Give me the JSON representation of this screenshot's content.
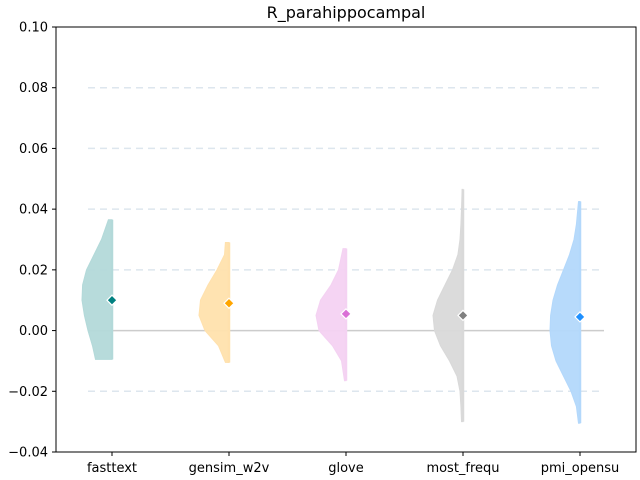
{
  "chart_data": {
    "type": "violin",
    "title": "R_parahippocampal",
    "xlabel": "",
    "ylabel": "",
    "ylim": [
      -0.04,
      0.1
    ],
    "yticks": [
      -0.04,
      -0.02,
      0.0,
      0.02,
      0.04,
      0.06,
      0.08,
      0.1
    ],
    "ytick_labels": [
      "−0.04",
      "−0.02",
      "0.00",
      "0.02",
      "0.04",
      "0.06",
      "0.08",
      "0.10"
    ],
    "grid": {
      "horizontal_dashed": true,
      "values": [
        -0.02,
        0.02,
        0.04,
        0.06,
        0.08
      ]
    },
    "zero_line": 0.0,
    "categories": [
      "fasttext",
      "gensim_w2v",
      "glove",
      "most_frequ",
      "pmi_opensu"
    ],
    "series": [
      {
        "color": "#008080",
        "fill": "#b3d9d9",
        "mean": 0.01,
        "min": -0.0095,
        "max": 0.0365,
        "density": [
          [
            -0.0095,
            0.55
          ],
          [
            -0.005,
            0.65
          ],
          [
            0.0,
            0.8
          ],
          [
            0.005,
            0.92
          ],
          [
            0.01,
            1.0
          ],
          [
            0.015,
            0.98
          ],
          [
            0.02,
            0.85
          ],
          [
            0.025,
            0.6
          ],
          [
            0.03,
            0.35
          ],
          [
            0.0365,
            0.12
          ]
        ]
      },
      {
        "color": "#FFA500",
        "fill": "#ffe1ad",
        "mean": 0.009,
        "min": -0.0105,
        "max": 0.029,
        "density": [
          [
            -0.0105,
            0.12
          ],
          [
            -0.005,
            0.35
          ],
          [
            0.0,
            0.8
          ],
          [
            0.005,
            1.0
          ],
          [
            0.01,
            0.95
          ],
          [
            0.015,
            0.7
          ],
          [
            0.02,
            0.4
          ],
          [
            0.025,
            0.15
          ],
          [
            0.029,
            0.12
          ]
        ]
      },
      {
        "color": "#DA70D6",
        "fill": "#f4d2f2",
        "mean": 0.0055,
        "min": -0.0165,
        "max": 0.027,
        "density": [
          [
            -0.0165,
            0.05
          ],
          [
            -0.01,
            0.15
          ],
          [
            -0.005,
            0.45
          ],
          [
            0.0,
            0.9
          ],
          [
            0.005,
            1.0
          ],
          [
            0.01,
            0.85
          ],
          [
            0.015,
            0.5
          ],
          [
            0.02,
            0.25
          ],
          [
            0.027,
            0.1
          ]
        ]
      },
      {
        "color": "#808080",
        "fill": "#d9d9d9",
        "mean": 0.005,
        "min": -0.03,
        "max": 0.0465,
        "density": [
          [
            -0.03,
            0.05
          ],
          [
            -0.025,
            0.07
          ],
          [
            -0.02,
            0.1
          ],
          [
            -0.015,
            0.2
          ],
          [
            -0.01,
            0.45
          ],
          [
            -0.005,
            0.75
          ],
          [
            0.0,
            0.95
          ],
          [
            0.005,
            1.0
          ],
          [
            0.01,
            0.85
          ],
          [
            0.015,
            0.6
          ],
          [
            0.02,
            0.35
          ],
          [
            0.025,
            0.17
          ],
          [
            0.03,
            0.1
          ],
          [
            0.035,
            0.07
          ],
          [
            0.04,
            0.05
          ],
          [
            0.0465,
            0.03
          ]
        ]
      },
      {
        "color": "#1E90FF",
        "fill": "#b3d8fb",
        "mean": 0.0045,
        "min": -0.0305,
        "max": 0.0425,
        "density": [
          [
            -0.0305,
            0.05
          ],
          [
            -0.025,
            0.12
          ],
          [
            -0.02,
            0.3
          ],
          [
            -0.015,
            0.55
          ],
          [
            -0.01,
            0.8
          ],
          [
            -0.005,
            0.95
          ],
          [
            0.0,
            1.0
          ],
          [
            0.005,
            0.98
          ],
          [
            0.01,
            0.9
          ],
          [
            0.015,
            0.75
          ],
          [
            0.02,
            0.55
          ],
          [
            0.025,
            0.35
          ],
          [
            0.03,
            0.2
          ],
          [
            0.035,
            0.12
          ],
          [
            0.0425,
            0.05
          ]
        ]
      }
    ]
  }
}
